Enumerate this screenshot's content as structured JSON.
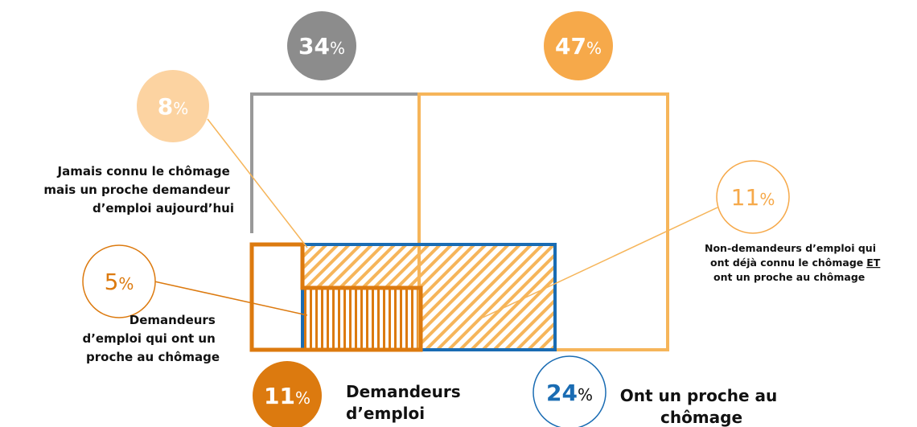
{
  "bubbles": [
    {
      "value": 34,
      "unit": "%"
    },
    {
      "value": 47,
      "unit": "%"
    },
    {
      "value": 8,
      "unit": "%"
    },
    {
      "value": 11,
      "unit": "%"
    },
    {
      "value": 5,
      "unit": "%"
    },
    {
      "value": 11,
      "unit": "%"
    },
    {
      "value": 24,
      "unit": "%"
    }
  ],
  "labels": {
    "never_unemployed": [
      "Jamais connu le chômage",
      "mais un proche demandeur",
      "d’emploi aujourd’hui"
    ],
    "non_seekers": [
      "Non-demandeurs d’emploi qui",
      "ont déjà connu le chômage",
      "ET",
      "ont un proche au chômage"
    ],
    "seekers_with_relative": [
      "Demandeurs",
      "d’emploi qui ont un",
      "proche au chômage"
    ],
    "seekers": [
      "Demandeurs",
      "d’emploi"
    ],
    "relative": [
      "Ont un proche au",
      "chômage"
    ]
  }
}
